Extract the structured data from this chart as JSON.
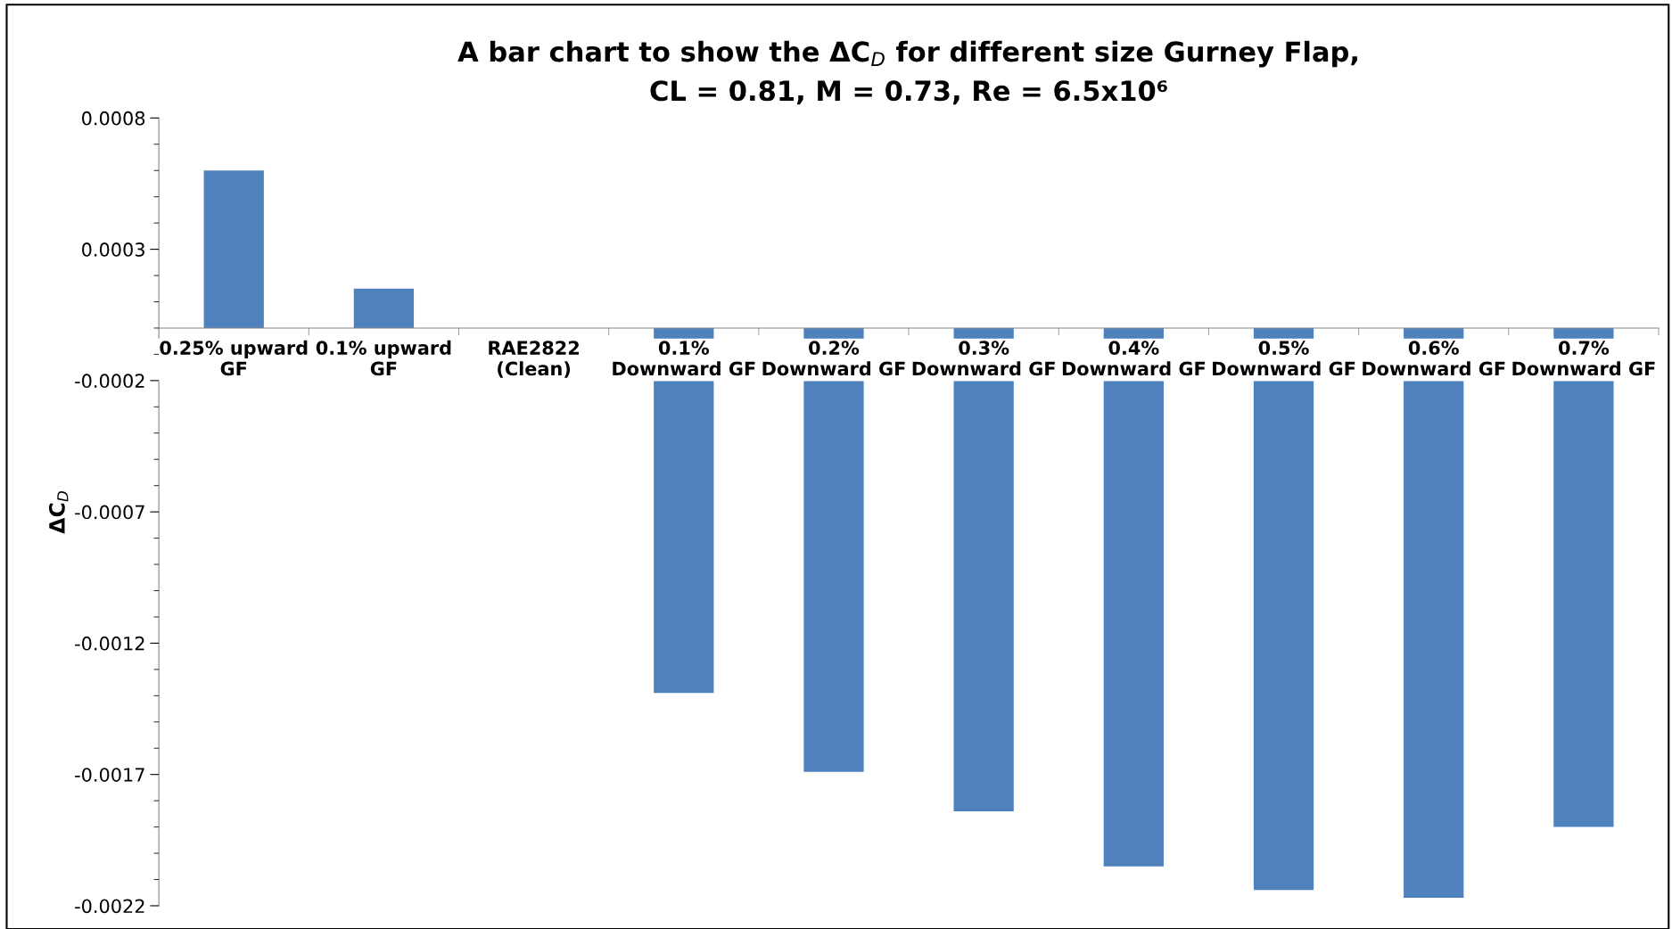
{
  "chart_data": {
    "type": "bar",
    "title": "A bar chart to show the ΔC$_{D}$ for different size Gurney Flap,\nCL = 0.81, M = 0.73, Re = 6.5x10⁶",
    "ylabel": "ΔC$_{D}$",
    "categories": [
      "0.25% upward\nGF",
      "0.1% upward\nGF",
      "RAE2822\n(Clean)",
      "0.1%\nDownward GF",
      "0.2%\nDownward GF",
      "0.3%\nDownward GF",
      "0.4%\nDownward GF",
      "0.5%\nDownward GF",
      "0.6%\nDownward GF",
      "0.7%\nDownward GF"
    ],
    "values": [
      0.0006,
      0.00015,
      0,
      -0.00139,
      -0.00169,
      -0.00184,
      -0.00205,
      -0.00214,
      -0.00217,
      -0.0019
    ],
    "color": "#4f81bd",
    "ylim": [
      -0.0022,
      0.0008
    ],
    "yticks": [
      0.0008,
      0.0003,
      -0.0002,
      -0.0007,
      -0.0012,
      -0.0017,
      -0.0022
    ],
    "grid": false,
    "legend": false
  }
}
